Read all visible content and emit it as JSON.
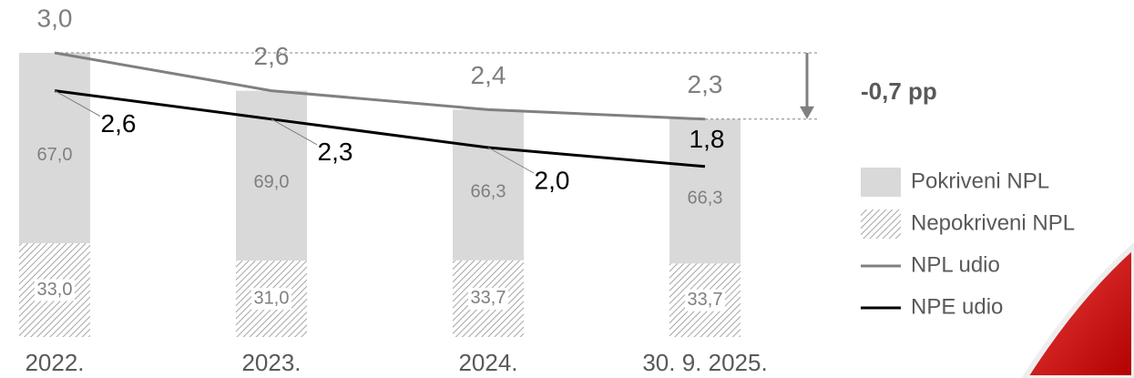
{
  "chart_data": {
    "type": "bar",
    "categories": [
      "2022.",
      "2023.",
      "2024.",
      "30. 9. 2025."
    ],
    "series": [
      {
        "name": "Pokriveni NPL",
        "kind": "bar",
        "color": "#d9d9d9",
        "values": [
          67,
          69,
          66.3,
          66.3
        ],
        "value_labels": [
          "67,0",
          "69,0",
          "66,3",
          "66,3"
        ]
      },
      {
        "name": "Nepokriveni NPL",
        "kind": "bar",
        "color": "#a6a6a6",
        "hatch": true,
        "values": [
          33,
          31,
          33.7,
          33.7
        ],
        "value_labels": [
          "33,0",
          "31,0",
          "33,7",
          "33,7"
        ]
      },
      {
        "name": "NPL udio",
        "kind": "line",
        "color": "#808080",
        "values": [
          3.0,
          2.6,
          2.4,
          2.3
        ],
        "value_labels": [
          "3,0",
          "2,6",
          "2,4",
          "2,3"
        ]
      },
      {
        "name": "NPE udio",
        "kind": "line",
        "color": "#000000",
        "values": [
          2.6,
          2.3,
          2.0,
          1.8
        ],
        "value_labels": [
          "2,6",
          "2,3",
          "2,0",
          "1,8"
        ]
      }
    ],
    "annotation": "-0,7 pp"
  }
}
